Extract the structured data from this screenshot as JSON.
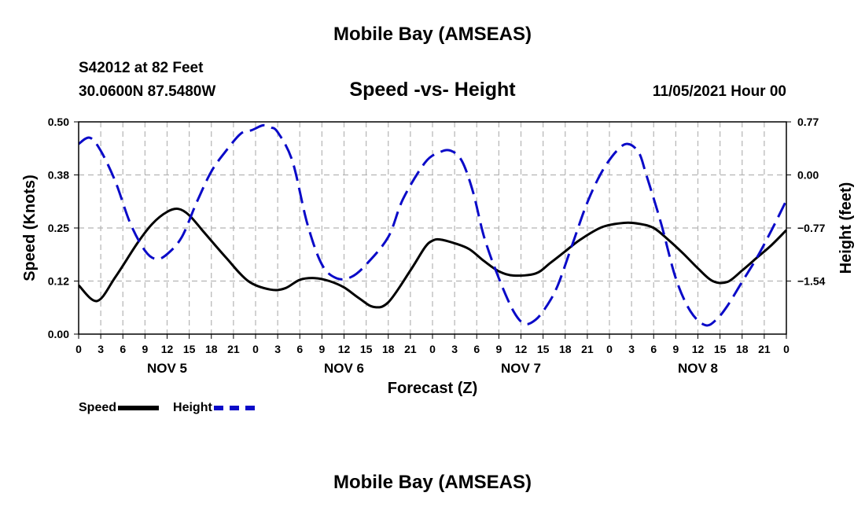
{
  "header": {
    "title": "Mobile Bay (AMSEAS)",
    "station": "S42012 at 82 Feet",
    "coords": "30.0600N  87.5480W",
    "subtitle": "Speed -vs- Height",
    "run": "11/05/2021 Hour 00"
  },
  "legend": {
    "speed_label": "Speed",
    "height_label": "Height"
  },
  "footer": {
    "title": "Mobile Bay (AMSEAS)"
  },
  "colors": {
    "speed": "#000000",
    "height": "#0a0ac8",
    "grid": "#b4b4b4"
  },
  "chart_data": {
    "type": "line",
    "title": "Speed -vs- Height",
    "xlabel": "Forecast (Z)",
    "ylabel": "Speed (Knots)",
    "y2label": "Height (feet)",
    "xlim": [
      0,
      96
    ],
    "x_tick_labels": [
      "0",
      "3",
      "6",
      "9",
      "12",
      "15",
      "18",
      "21",
      "0",
      "3",
      "6",
      "9",
      "12",
      "15",
      "18",
      "21",
      "0",
      "3",
      "6",
      "9",
      "12",
      "15",
      "18",
      "21",
      "0",
      "3",
      "6",
      "9",
      "12",
      "15",
      "18",
      "21",
      "0"
    ],
    "day_labels": [
      {
        "label": "NOV 5",
        "hour": 12
      },
      {
        "label": "NOV 6",
        "hour": 36
      },
      {
        "label": "NOV 7",
        "hour": 60
      },
      {
        "label": "NOV 8",
        "hour": 84
      }
    ],
    "ylim": [
      0,
      0.5
    ],
    "y_ticks": [
      0,
      0.125,
      0.25,
      0.375,
      0.5
    ],
    "y_tick_labels": [
      "0.00",
      "0.12",
      "0.25",
      "0.38",
      "0.50"
    ],
    "y2lim": [
      -2.31,
      0.77
    ],
    "y2_ticks": [
      -1.54,
      -0.77,
      0.0,
      0.77
    ],
    "y2_tick_labels": [
      "−1.54",
      "−0.77",
      "0.00",
      "0.77"
    ],
    "grid": true,
    "series": [
      {
        "name": "Speed",
        "axis": "left",
        "style": "solid",
        "x": [
          0,
          2.5,
          5,
          8,
          10,
          12,
          13.5,
          15,
          17,
          20,
          23,
          26,
          28,
          30,
          32,
          34,
          36,
          38,
          40,
          42,
          45,
          47,
          48,
          49,
          51,
          53,
          55,
          57,
          59,
          62,
          64,
          66,
          68,
          71,
          74,
          76,
          78,
          80,
          82,
          84,
          86,
          88,
          90,
          92,
          94,
          96
        ],
        "y": [
          0.115,
          0.078,
          0.135,
          0.215,
          0.26,
          0.288,
          0.295,
          0.28,
          0.24,
          0.18,
          0.125,
          0.105,
          0.108,
          0.128,
          0.132,
          0.125,
          0.11,
          0.085,
          0.064,
          0.075,
          0.15,
          0.205,
          0.22,
          0.223,
          0.214,
          0.2,
          0.172,
          0.148,
          0.138,
          0.143,
          0.168,
          0.195,
          0.222,
          0.252,
          0.262,
          0.26,
          0.25,
          0.222,
          0.19,
          0.155,
          0.125,
          0.123,
          0.15,
          0.18,
          0.21,
          0.245
        ]
      },
      {
        "name": "Height",
        "axis": "right",
        "style": "dashed",
        "x": [
          0,
          1.5,
          3,
          5,
          7,
          9,
          10.5,
          12,
          14,
          16,
          18,
          20,
          22,
          23.5,
          25,
          26,
          27,
          29,
          31,
          33,
          35,
          37,
          39,
          42,
          44,
          47,
          49,
          50.5,
          52,
          53.5,
          55,
          57,
          59,
          60.5,
          62,
          63.5,
          65,
          67,
          69,
          71,
          73,
          74.5,
          76,
          77,
          79,
          81,
          83,
          85,
          86.5,
          88,
          90,
          92,
          94,
          96
        ],
        "y": [
          0.45,
          0.54,
          0.35,
          -0.1,
          -0.7,
          -1.1,
          -1.22,
          -1.15,
          -0.9,
          -0.4,
          0.05,
          0.35,
          0.6,
          0.65,
          0.72,
          0.69,
          0.62,
          0.2,
          -0.7,
          -1.3,
          -1.5,
          -1.48,
          -1.3,
          -0.9,
          -0.35,
          0.18,
          0.33,
          0.35,
          0.2,
          -0.25,
          -0.9,
          -1.5,
          -1.98,
          -2.16,
          -2.1,
          -1.9,
          -1.6,
          -1.0,
          -0.4,
          0.05,
          0.35,
          0.45,
          0.32,
          0.0,
          -0.7,
          -1.5,
          -1.98,
          -2.18,
          -2.1,
          -1.9,
          -1.55,
          -1.2,
          -0.8,
          -0.37
        ]
      }
    ]
  }
}
